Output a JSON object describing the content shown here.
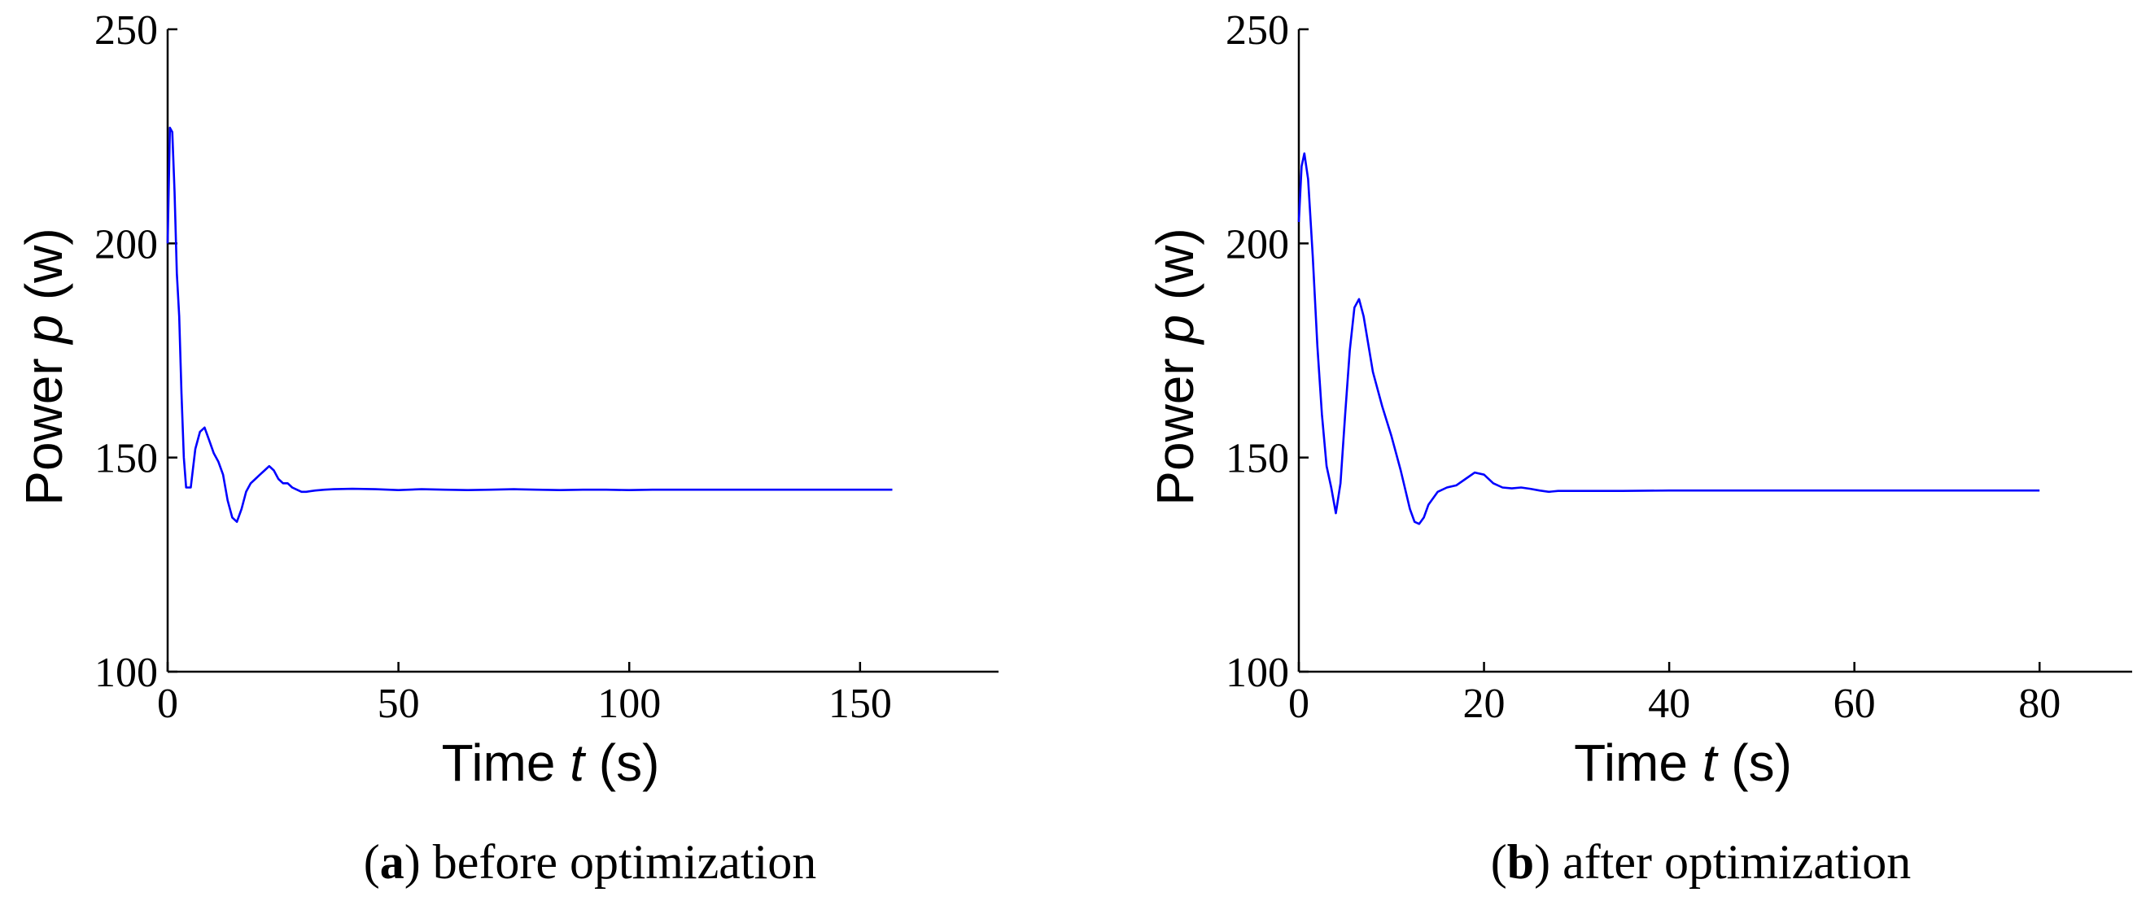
{
  "colors": {
    "series": "#0000ff",
    "axis": "#000000",
    "background": "#ffffff"
  },
  "chart_data": [
    {
      "type": "line",
      "panel_letter": "a",
      "caption": "before optimization",
      "xlabel_prefix": "Time",
      "xlabel_var": "t",
      "xlabel_unit": "(s)",
      "ylabel_prefix": "Power",
      "ylabel_var": "p",
      "ylabel_unit": "(w)",
      "xlim": [
        0,
        180
      ],
      "ylim": [
        100,
        250
      ],
      "xticks": [
        0,
        50,
        100,
        150
      ],
      "yticks": [
        100,
        150,
        200,
        250
      ],
      "grid": false,
      "series": [
        {
          "x": [
            0,
            0.5,
            1,
            1.5,
            2,
            2.5,
            3,
            3.5,
            4,
            5,
            6,
            7,
            8,
            9,
            10,
            11,
            12,
            13,
            14,
            15,
            16,
            17,
            18,
            19,
            20,
            21,
            22,
            23,
            24,
            25,
            26,
            27,
            28,
            29,
            30,
            32,
            34,
            36,
            40,
            45,
            50,
            55,
            60,
            65,
            70,
            75,
            80,
            85,
            90,
            95,
            100,
            105,
            110,
            115,
            120,
            125,
            130,
            135,
            140,
            145,
            150,
            155,
            157
          ],
          "y": [
            200,
            227,
            226,
            212,
            193,
            183,
            165,
            150,
            143,
            143,
            152,
            156,
            157,
            154,
            151,
            149,
            146,
            140,
            136,
            135,
            138,
            142,
            144,
            145,
            146,
            147,
            148,
            147,
            145,
            144,
            144,
            143,
            142.5,
            142,
            142,
            142.3,
            142.5,
            142.6,
            142.7,
            142.6,
            142.4,
            142.6,
            142.5,
            142.4,
            142.5,
            142.6,
            142.5,
            142.4,
            142.5,
            142.5,
            142.4,
            142.5,
            142.5,
            142.5,
            142.5,
            142.5,
            142.5,
            142.5,
            142.5,
            142.5,
            142.5,
            142.5,
            142.5
          ]
        }
      ]
    },
    {
      "type": "line",
      "panel_letter": "b",
      "caption": "after optimization",
      "xlabel_prefix": "Time",
      "xlabel_var": "t",
      "xlabel_unit": "(s)",
      "ylabel_prefix": "Power",
      "ylabel_var": "p",
      "ylabel_unit": "(w)",
      "xlim": [
        0,
        90
      ],
      "ylim": [
        100,
        250
      ],
      "xticks": [
        0,
        20,
        40,
        60,
        80
      ],
      "yticks": [
        100,
        150,
        200,
        250
      ],
      "grid": false,
      "series": [
        {
          "x": [
            0,
            0.3,
            0.6,
            1,
            1.5,
            2,
            2.5,
            3,
            3.5,
            4,
            4.5,
            5,
            5.5,
            6,
            6.5,
            7,
            8,
            9,
            10,
            11,
            12,
            12.5,
            13,
            13.5,
            14,
            15,
            16,
            17,
            18,
            19,
            20,
            21,
            22,
            23,
            24,
            25,
            26,
            27,
            28,
            30,
            35,
            40,
            45,
            50,
            55,
            60,
            65,
            70,
            75,
            80
          ],
          "y": [
            205,
            218,
            221,
            215,
            197,
            176,
            160,
            148,
            143,
            137,
            144,
            160,
            175,
            185,
            187,
            183,
            170,
            162,
            155,
            147,
            138,
            135,
            134.5,
            136,
            139,
            142,
            143,
            143.5,
            145,
            146.5,
            146,
            144,
            143,
            142.8,
            143,
            142.7,
            142.3,
            142,
            142.2,
            142.2,
            142.2,
            142.3,
            142.3,
            142.3,
            142.3,
            142.3,
            142.3,
            142.3,
            142.3,
            142.3
          ]
        }
      ]
    }
  ]
}
